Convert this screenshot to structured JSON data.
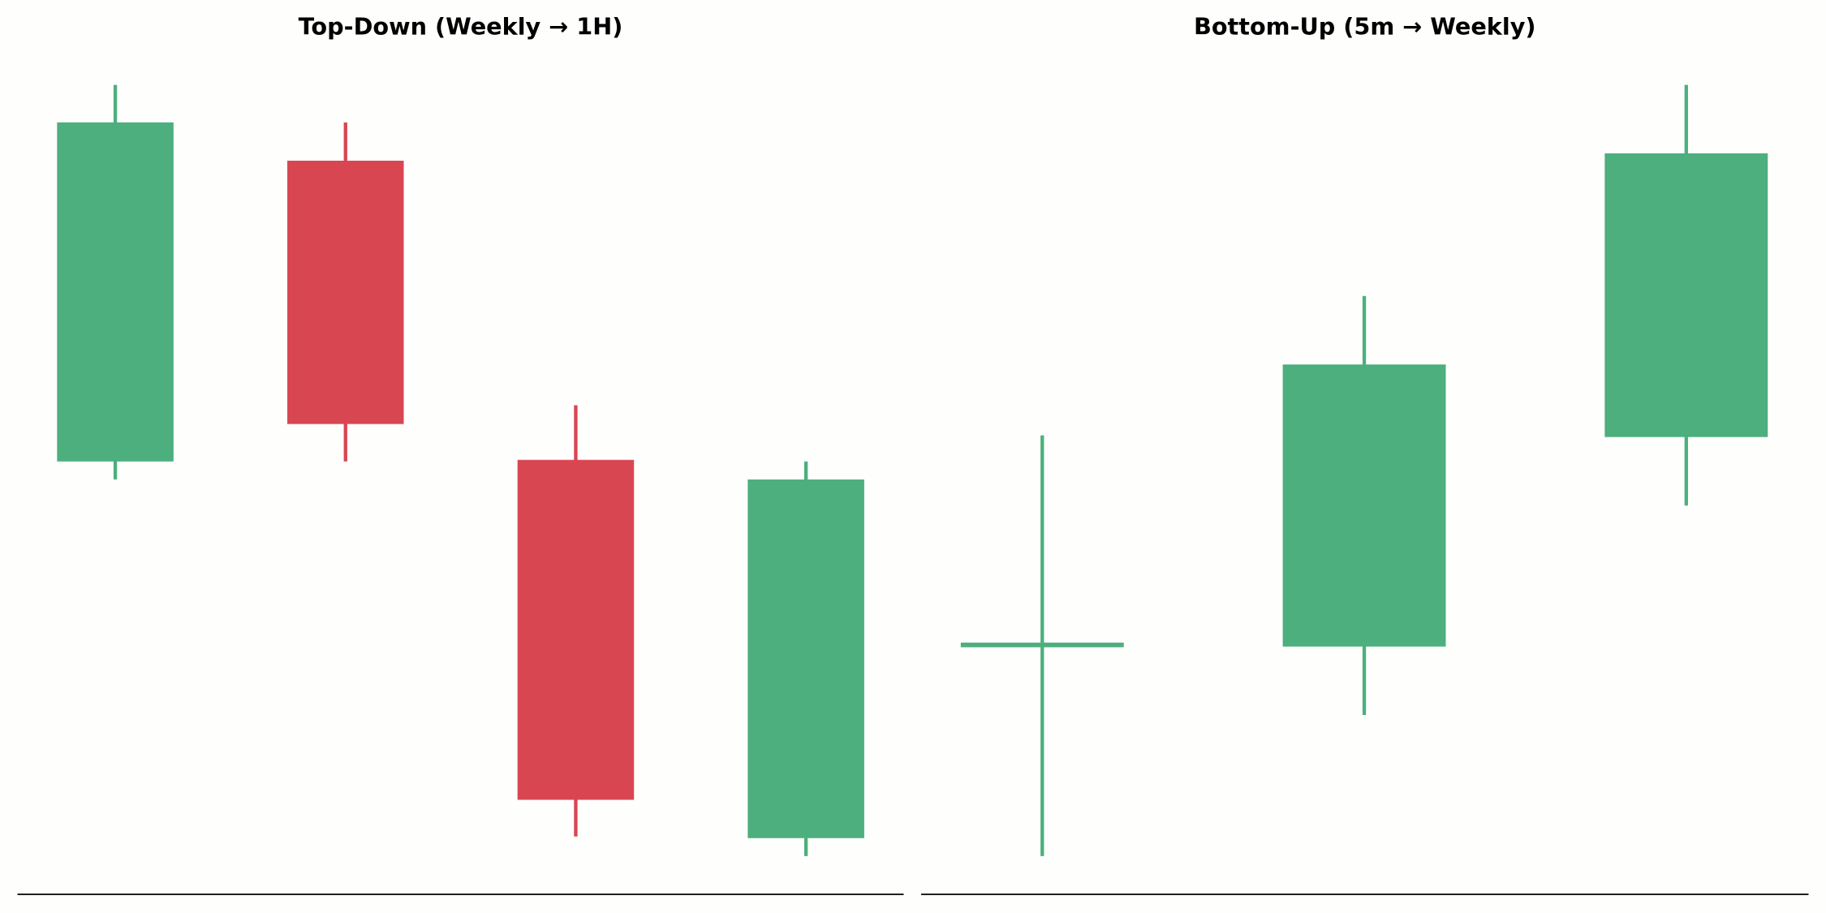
{
  "chart_data": [
    {
      "type": "candlestick",
      "title": "Top-Down (Weekly → 1H)",
      "open": [
        53.1,
        90.0,
        53.3,
        6.9
      ],
      "high": [
        99.3,
        94.7,
        60.0,
        53.1
      ],
      "low": [
        50.9,
        53.1,
        7.1,
        4.7
      ],
      "close": [
        94.7,
        57.7,
        11.6,
        50.9
      ],
      "ylim": [
        0,
        100
      ],
      "up_color": "#4caf7d",
      "down_color": "#d84652"
    },
    {
      "type": "candlestick",
      "title": "Bottom-Up (5m → Weekly)",
      "open": [
        30.6,
        30.4,
        56.1
      ],
      "high": [
        56.3,
        73.4,
        99.3
      ],
      "low": [
        4.7,
        22.0,
        47.7
      ],
      "close": [
        30.6,
        65.0,
        90.9
      ],
      "ylim": [
        0,
        100
      ],
      "up_color": "#4caf7d",
      "down_color": "#d84652"
    }
  ]
}
